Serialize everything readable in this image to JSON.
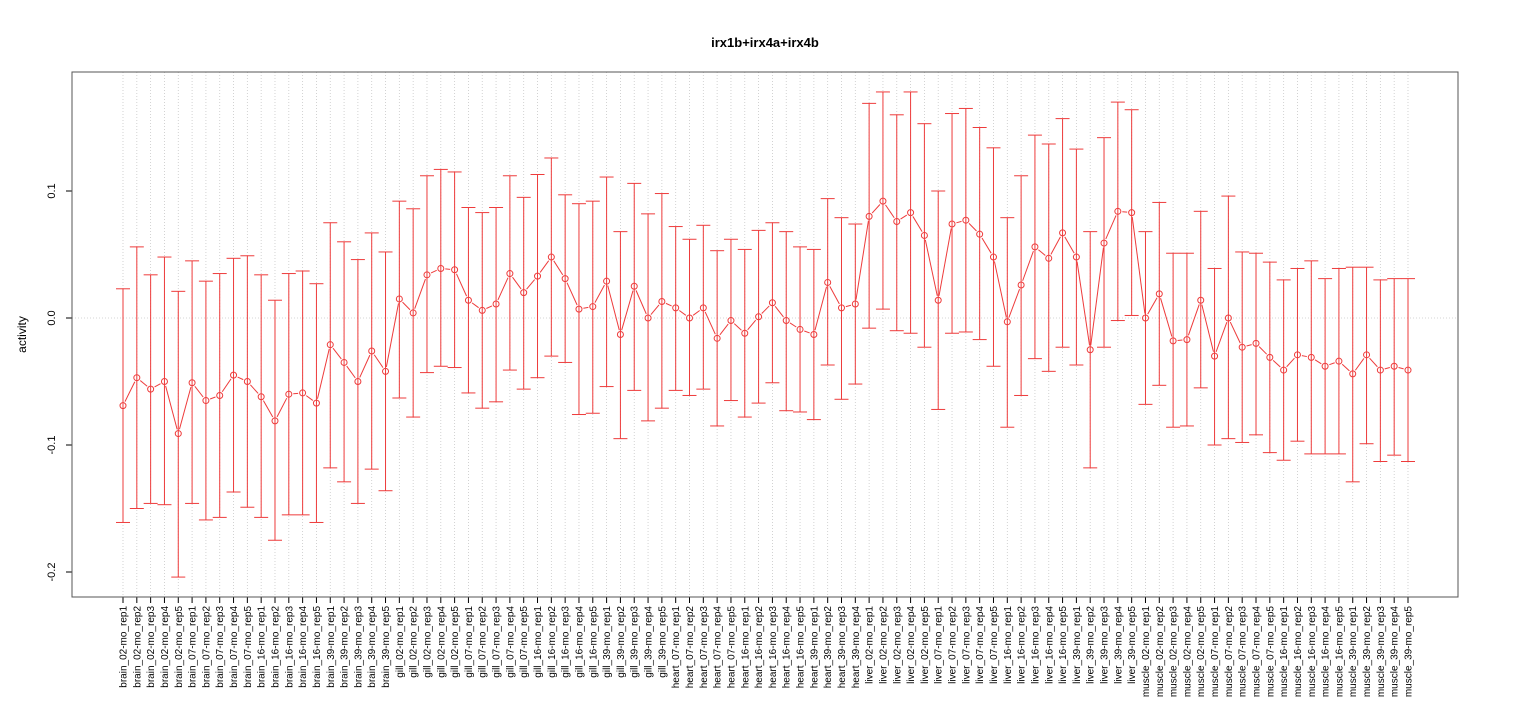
{
  "chart_data": {
    "type": "line",
    "title": "irx1b+irx4a+irx4b",
    "xlabel": "",
    "ylabel": "activity",
    "ylim": [
      -0.22,
      0.195
    ],
    "yticks": [
      -0.2,
      -0.1,
      0.0,
      0.1
    ],
    "ytick_labels": [
      "-0.2",
      "-0.1",
      "0.0",
      "0.1"
    ],
    "grid": true,
    "legend": "none",
    "colors": {
      "series": "#ee3b3b",
      "grid": "#c8c8c8",
      "frame": "#555555"
    },
    "categories": [
      "brain_02-mo_rep1",
      "brain_02-mo_rep2",
      "brain_02-mo_rep3",
      "brain_02-mo_rep4",
      "brain_02-mo_rep5",
      "brain_07-mo_rep1",
      "brain_07-mo_rep2",
      "brain_07-mo_rep3",
      "brain_07-mo_rep4",
      "brain_07-mo_rep5",
      "brain_16-mo_rep1",
      "brain_16-mo_rep2",
      "brain_16-mo_rep3",
      "brain_16-mo_rep4",
      "brain_16-mo_rep5",
      "brain_39-mo_rep1",
      "brain_39-mo_rep2",
      "brain_39-mo_rep3",
      "brain_39-mo_rep4",
      "brain_39-mo_rep5",
      "gill_02-mo_rep1",
      "gill_02-mo_rep2",
      "gill_02-mo_rep3",
      "gill_02-mo_rep4",
      "gill_02-mo_rep5",
      "gill_07-mo_rep1",
      "gill_07-mo_rep2",
      "gill_07-mo_rep3",
      "gill_07-mo_rep4",
      "gill_07-mo_rep5",
      "gill_16-mo_rep1",
      "gill_16-mo_rep2",
      "gill_16-mo_rep3",
      "gill_16-mo_rep4",
      "gill_16-mo_rep5",
      "gill_39-mo_rep1",
      "gill_39-mo_rep2",
      "gill_39-mo_rep3",
      "gill_39-mo_rep4",
      "gill_39-mo_rep5",
      "heart_07-mo_rep1",
      "heart_07-mo_rep2",
      "heart_07-mo_rep3",
      "heart_07-mo_rep4",
      "heart_07-mo_rep5",
      "heart_16-mo_rep1",
      "heart_16-mo_rep2",
      "heart_16-mo_rep3",
      "heart_16-mo_rep4",
      "heart_16-mo_rep5",
      "heart_39-mo_rep1",
      "heart_39-mo_rep2",
      "heart_39-mo_rep3",
      "heart_39-mo_rep4",
      "liver_02-mo_rep1",
      "liver_02-mo_rep2",
      "liver_02-mo_rep3",
      "liver_02-mo_rep4",
      "liver_02-mo_rep5",
      "liver_07-mo_rep1",
      "liver_07-mo_rep2",
      "liver_07-mo_rep3",
      "liver_07-mo_rep4",
      "liver_07-mo_rep5",
      "liver_16-mo_rep1",
      "liver_16-mo_rep2",
      "liver_16-mo_rep3",
      "liver_16-mo_rep4",
      "liver_16-mo_rep5",
      "liver_39-mo_rep1",
      "liver_39-mo_rep2",
      "liver_39-mo_rep3",
      "liver_39-mo_rep4",
      "liver_39-mo_rep5",
      "muscle_02-mo_rep1",
      "muscle_02-mo_rep2",
      "muscle_02-mo_rep3",
      "muscle_02-mo_rep4",
      "muscle_02-mo_rep5",
      "muscle_07-mo_rep1",
      "muscle_07-mo_rep2",
      "muscle_07-mo_rep3",
      "muscle_07-mo_rep4",
      "muscle_07-mo_rep5",
      "muscle_16-mo_rep1",
      "muscle_16-mo_rep2",
      "muscle_16-mo_rep3",
      "muscle_16-mo_rep4",
      "muscle_16-mo_rep5",
      "muscle_39-mo_rep1",
      "muscle_39-mo_rep2",
      "muscle_39-mo_rep3",
      "muscle_39-mo_rep4",
      "muscle_39-mo_rep5"
    ],
    "series": [
      {
        "values": [
          -0.069,
          -0.047,
          -0.056,
          -0.05,
          -0.091,
          -0.051,
          -0.065,
          -0.061,
          -0.045,
          -0.05,
          -0.062,
          -0.081,
          -0.06,
          -0.059,
          -0.067,
          -0.021,
          -0.035,
          -0.05,
          -0.026,
          -0.042,
          0.015,
          0.004,
          0.034,
          0.039,
          0.038,
          0.014,
          0.006,
          0.011,
          0.035,
          0.02,
          0.033,
          0.048,
          0.031,
          0.007,
          0.009,
          0.029,
          -0.013,
          0.025,
          0.0,
          0.013,
          0.008,
          0.0,
          0.008,
          -0.016,
          -0.002,
          -0.012,
          0.001,
          0.012,
          -0.002,
          -0.009,
          -0.013,
          0.028,
          0.008,
          0.011,
          0.08,
          0.092,
          0.076,
          0.083,
          0.065,
          0.014,
          0.074,
          0.077,
          0.066,
          0.048,
          -0.003,
          0.026,
          0.056,
          0.047,
          0.067,
          0.048,
          -0.025,
          0.059,
          0.084,
          0.083,
          0.0,
          0.019,
          -0.018,
          -0.017,
          0.014,
          -0.03,
          0.0,
          -0.023,
          -0.02,
          -0.031,
          -0.041,
          -0.029,
          -0.031,
          -0.038,
          -0.034,
          -0.044,
          -0.029,
          -0.041,
          -0.038,
          -0.041
        ],
        "lower": [
          -0.161,
          -0.15,
          -0.146,
          -0.147,
          -0.204,
          -0.146,
          -0.159,
          -0.157,
          -0.137,
          -0.149,
          -0.157,
          -0.175,
          -0.155,
          -0.155,
          -0.161,
          -0.118,
          -0.129,
          -0.146,
          -0.119,
          -0.136,
          -0.063,
          -0.078,
          -0.043,
          -0.038,
          -0.039,
          -0.059,
          -0.071,
          -0.066,
          -0.041,
          -0.056,
          -0.047,
          -0.03,
          -0.035,
          -0.076,
          -0.075,
          -0.054,
          -0.095,
          -0.057,
          -0.081,
          -0.071,
          -0.057,
          -0.061,
          -0.056,
          -0.085,
          -0.065,
          -0.078,
          -0.067,
          -0.051,
          -0.073,
          -0.074,
          -0.08,
          -0.037,
          -0.064,
          -0.052,
          -0.008,
          0.007,
          -0.01,
          -0.012,
          -0.023,
          -0.072,
          -0.012,
          -0.011,
          -0.017,
          -0.038,
          -0.086,
          -0.061,
          -0.032,
          -0.042,
          -0.023,
          -0.037,
          -0.118,
          -0.023,
          -0.002,
          0.002,
          -0.068,
          -0.053,
          -0.086,
          -0.085,
          -0.055,
          -0.1,
          -0.095,
          -0.098,
          -0.092,
          -0.106,
          -0.112,
          -0.097,
          -0.107,
          -0.107,
          -0.107,
          -0.129,
          -0.099,
          -0.113,
          -0.108,
          -0.113
        ],
        "upper": [
          0.023,
          0.056,
          0.034,
          0.048,
          0.021,
          0.045,
          0.029,
          0.035,
          0.047,
          0.049,
          0.034,
          0.014,
          0.035,
          0.037,
          0.027,
          0.075,
          0.06,
          0.046,
          0.067,
          0.052,
          0.092,
          0.086,
          0.112,
          0.117,
          0.115,
          0.087,
          0.083,
          0.087,
          0.112,
          0.095,
          0.113,
          0.126,
          0.097,
          0.09,
          0.092,
          0.111,
          0.068,
          0.106,
          0.082,
          0.098,
          0.072,
          0.062,
          0.073,
          0.053,
          0.062,
          0.054,
          0.069,
          0.075,
          0.068,
          0.056,
          0.054,
          0.094,
          0.079,
          0.074,
          0.169,
          0.178,
          0.16,
          0.178,
          0.153,
          0.1,
          0.161,
          0.165,
          0.15,
          0.134,
          0.079,
          0.112,
          0.144,
          0.137,
          0.157,
          0.133,
          0.068,
          0.142,
          0.17,
          0.164,
          0.068,
          0.091,
          0.051,
          0.051,
          0.084,
          0.039,
          0.096,
          0.052,
          0.051,
          0.044,
          0.03,
          0.039,
          0.045,
          0.031,
          0.039,
          0.04,
          0.04,
          0.03,
          0.031,
          0.031
        ]
      }
    ]
  }
}
